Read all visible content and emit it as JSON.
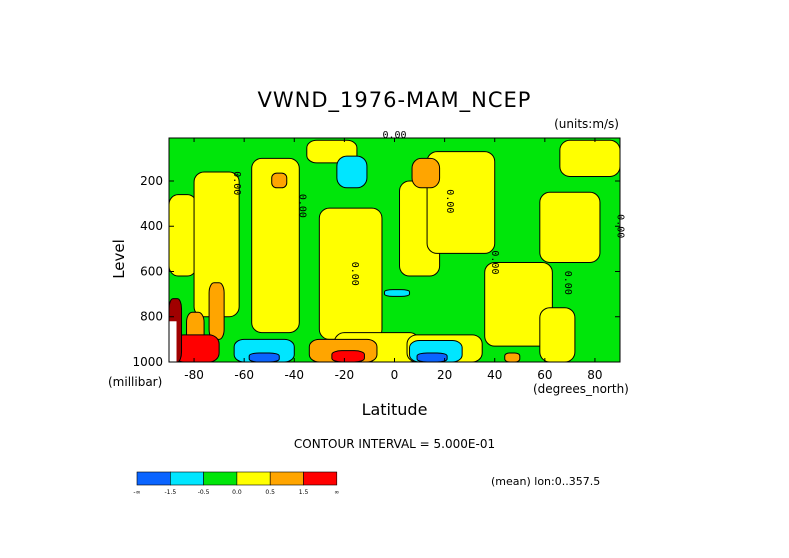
{
  "chart_data": {
    "type": "heatmap",
    "title": "VWND_1976-MAM_NCEP",
    "units": "(units:m/s)",
    "xlabel": "Latitude",
    "ylabel": "Level",
    "x_units": "(degrees_north)",
    "y_units": "(millibar)",
    "xlim": [
      -90,
      90
    ],
    "ylim": [
      1000,
      10
    ],
    "x_ticks": [
      -80,
      -60,
      -40,
      -20,
      0,
      20,
      40,
      60,
      80
    ],
    "y_ticks": [
      200,
      400,
      600,
      800,
      1000
    ],
    "contour_interval_text": "CONTOUR INTERVAL = 5.000E-01",
    "footer": "(mean) lon:0..357.5",
    "contour_labels": [
      {
        "text": "0.00",
        "x": 0,
        "y": 10,
        "rotate": 0
      },
      {
        "text": "0.00",
        "x": -64,
        "y": 210,
        "rotate": 90
      },
      {
        "text": "0.00",
        "x": -38,
        "y": 310,
        "rotate": 90
      },
      {
        "text": "0.00",
        "x": 21,
        "y": 290,
        "rotate": 90
      },
      {
        "text": "0.00",
        "x": -17,
        "y": 610,
        "rotate": 90
      },
      {
        "text": "0.00",
        "x": 39,
        "y": 560,
        "rotate": 90
      },
      {
        "text": "0.00",
        "x": 68,
        "y": 650,
        "rotate": 90
      },
      {
        "text": "0.00",
        "x": 89,
        "y": 400,
        "rotate": 90
      }
    ],
    "fields": [
      {
        "level": "yellow",
        "x0": -90,
        "x1": -79,
        "y0": 260,
        "y1": 620
      },
      {
        "level": "yellow",
        "x0": -80,
        "x1": -62,
        "y0": 160,
        "y1": 800
      },
      {
        "level": "yellow",
        "x0": -57,
        "x1": -38,
        "y0": 100,
        "y1": 870
      },
      {
        "level": "yellow",
        "x0": -30,
        "x1": -5,
        "y0": 320,
        "y1": 900
      },
      {
        "level": "yellow",
        "x0": 2,
        "x1": 18,
        "y0": 200,
        "y1": 620
      },
      {
        "level": "yellow",
        "x0": 13,
        "x1": 40,
        "y0": 70,
        "y1": 520
      },
      {
        "level": "yellow",
        "x0": 36,
        "x1": 63,
        "y0": 560,
        "y1": 930
      },
      {
        "level": "yellow",
        "x0": 58,
        "x1": 82,
        "y0": 250,
        "y1": 560
      },
      {
        "level": "yellow",
        "x0": 66,
        "x1": 90,
        "y0": 20,
        "y1": 180
      },
      {
        "level": "yellow",
        "x0": 58,
        "x1": 72,
        "y0": 760,
        "y1": 1000
      },
      {
        "level": "yellow",
        "x0": -24,
        "x1": 10,
        "y0": 870,
        "y1": 1000
      },
      {
        "level": "yellow",
        "x0": 5,
        "x1": 35,
        "y0": 880,
        "y1": 1000
      },
      {
        "level": "yellow",
        "x0": -35,
        "x1": -15,
        "y0": 20,
        "y1": 120
      },
      {
        "level": "orange",
        "x0": -49,
        "x1": -43,
        "y0": 165,
        "y1": 230
      },
      {
        "level": "orange",
        "x0": 7,
        "x1": 18,
        "y0": 100,
        "y1": 230
      },
      {
        "level": "cyan",
        "x0": -23,
        "x1": -11,
        "y0": 90,
        "y1": 230
      },
      {
        "level": "cyan",
        "x0": -4,
        "x1": 6,
        "y0": 680,
        "y1": 710
      },
      {
        "level": "orange",
        "x0": -34,
        "x1": -7,
        "y0": 900,
        "y1": 1000
      },
      {
        "level": "red",
        "x0": -25,
        "x1": -12,
        "y0": 950,
        "y1": 1000
      },
      {
        "level": "cyan",
        "x0": -64,
        "x1": -40,
        "y0": 900,
        "y1": 1000
      },
      {
        "level": "blue",
        "x0": -58,
        "x1": -46,
        "y0": 960,
        "y1": 1000
      },
      {
        "level": "cyan",
        "x0": 6,
        "x1": 27,
        "y0": 905,
        "y1": 1000
      },
      {
        "level": "blue",
        "x0": 9,
        "x1": 21,
        "y0": 960,
        "y1": 1000
      },
      {
        "level": "orange",
        "x0": -83,
        "x1": -76,
        "y0": 780,
        "y1": 1000
      },
      {
        "level": "orange",
        "x0": -74,
        "x1": -68,
        "y0": 650,
        "y1": 900
      },
      {
        "level": "red",
        "x0": -88,
        "x1": -70,
        "y0": 880,
        "y1": 1000
      },
      {
        "level": "darkred",
        "x0": -90,
        "x1": -85,
        "y0": 720,
        "y1": 1000
      },
      {
        "level": "orange",
        "x0": 44,
        "x1": 50,
        "y0": 960,
        "y1": 1000
      }
    ],
    "colorbar": {
      "colors": [
        "#0a64ff",
        "#00e6ff",
        "#00e60a",
        "#ffff00",
        "#ffa500",
        "#ff0000"
      ],
      "labels": [
        "-∞",
        "-1.5",
        "-0.5",
        "0.0",
        "0.5",
        "1.5",
        "∞"
      ]
    },
    "level_colors": {
      "blue": "#0a64ff",
      "cyan": "#00e6ff",
      "green": "#00e60a",
      "yellow": "#ffff00",
      "orange": "#ffa500",
      "red": "#ff0000",
      "darkred": "#a00000"
    }
  }
}
